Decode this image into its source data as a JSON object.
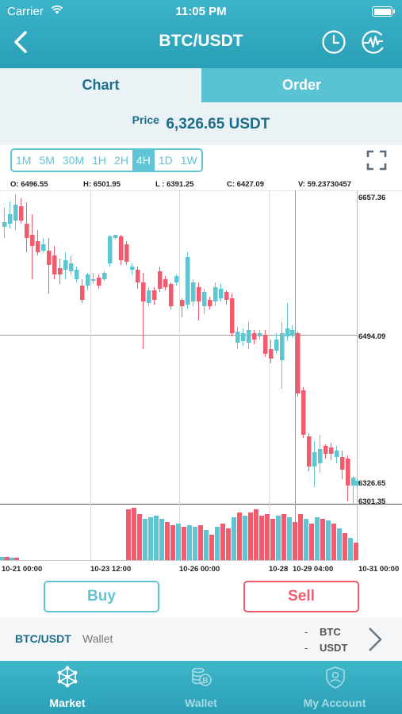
{
  "status_bar": {
    "carrier": "Carrier",
    "time": "11:05 PM"
  },
  "header": {
    "title": "BTC/USDT",
    "back_icon": "chevron-left-icon",
    "history_icon": "clock-icon",
    "activity_icon": "pulse-icon"
  },
  "tabs": [
    {
      "label": "Chart",
      "active": true
    },
    {
      "label": "Order",
      "active": false
    }
  ],
  "price": {
    "label": "Price",
    "value": "6,326.65 USDT"
  },
  "timeframes": {
    "items": [
      "1M",
      "5M",
      "30M",
      "1H",
      "2H",
      "4H",
      "1D",
      "1W"
    ],
    "selected": "4H"
  },
  "ohlc": {
    "open": "O: 6496.55",
    "high": "H: 6501.95",
    "low": "L : 6391.25",
    "close": "C: 6427.09",
    "volume": "V: 59.23730457"
  },
  "chart_data": {
    "type": "candlestick",
    "y_tick_labels": [
      "6657.36",
      "6494.09",
      "6326.65",
      "6301.35"
    ],
    "x_tick_labels": [
      "10-21 00:00",
      "10-23 12:00",
      "10-26 00:00",
      "10-28",
      "10-29 04:00",
      "10-31 00:00"
    ],
    "colors": {
      "up": "#5ec5d3",
      "down": "#f25a6e"
    }
  },
  "actions": {
    "buy": "Buy",
    "sell": "Sell"
  },
  "wallet": {
    "pair": "BTC/USDT",
    "label": "Wallet",
    "rows": [
      {
        "dash": "-",
        "currency": "BTC"
      },
      {
        "dash": "-",
        "currency": "USDT"
      }
    ]
  },
  "tabbar": [
    {
      "label": "Market",
      "icon": "network-icon",
      "active": true
    },
    {
      "label": "Wallet",
      "icon": "coins-icon",
      "active": false
    },
    {
      "label": "My Account",
      "icon": "shield-user-icon",
      "active": false
    }
  ]
}
